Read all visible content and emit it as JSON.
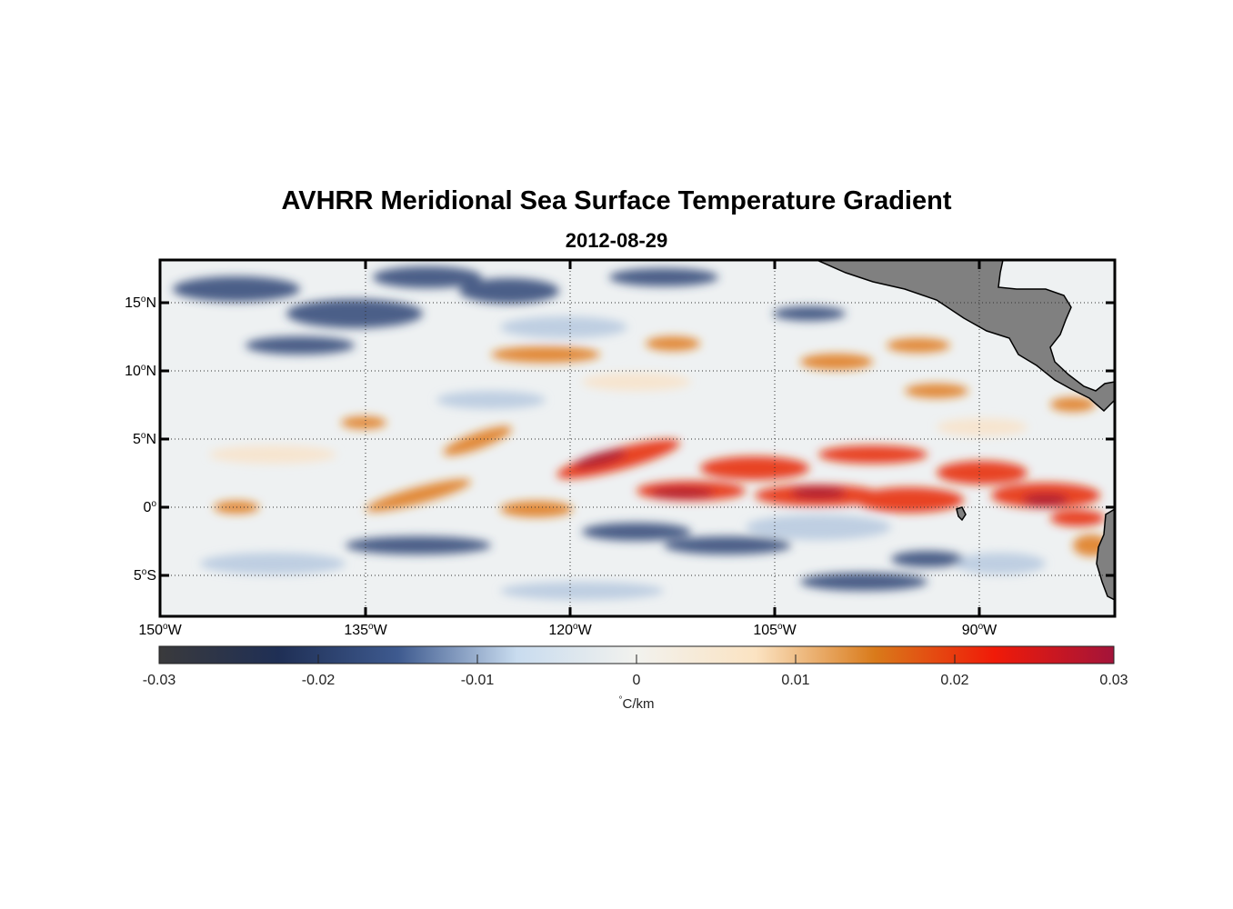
{
  "title": "AVHRR Meridional Sea Surface Temperature Gradient",
  "subtitle": "2012-08-29",
  "map": {
    "type": "heatmap",
    "extent": {
      "lon": [
        -150,
        -80
      ],
      "lat": [
        -8,
        18
      ]
    },
    "land_color": "#808080",
    "grid": "dotted",
    "lat_ticks": [
      {
        "deg": "15",
        "hem": "N"
      },
      {
        "deg": "10",
        "hem": "N"
      },
      {
        "deg": "5",
        "hem": "N"
      },
      {
        "deg": "0",
        "hem": ""
      },
      {
        "deg": "5",
        "hem": "S"
      }
    ],
    "lon_ticks": [
      {
        "deg": "150",
        "hem": "W"
      },
      {
        "deg": "135",
        "hem": "W"
      },
      {
        "deg": "120",
        "hem": "W"
      },
      {
        "deg": "105",
        "hem": "W"
      },
      {
        "deg": "90",
        "hem": "W"
      }
    ]
  },
  "colorbar": {
    "ticks": [
      "-0.03",
      "-0.02",
      "-0.01",
      "0",
      "0.01",
      "0.02",
      "0.03"
    ],
    "range": [
      -0.03,
      0.03
    ],
    "unit_symbol": "°",
    "unit_text": "C/km",
    "colors": [
      "#3a3a3c",
      "#1f2f55",
      "#3e5a8f",
      "#c9dcef",
      "#f2f2ee",
      "#fbe3c2",
      "#d97a1a",
      "#f01a08",
      "#a3143a"
    ]
  }
}
